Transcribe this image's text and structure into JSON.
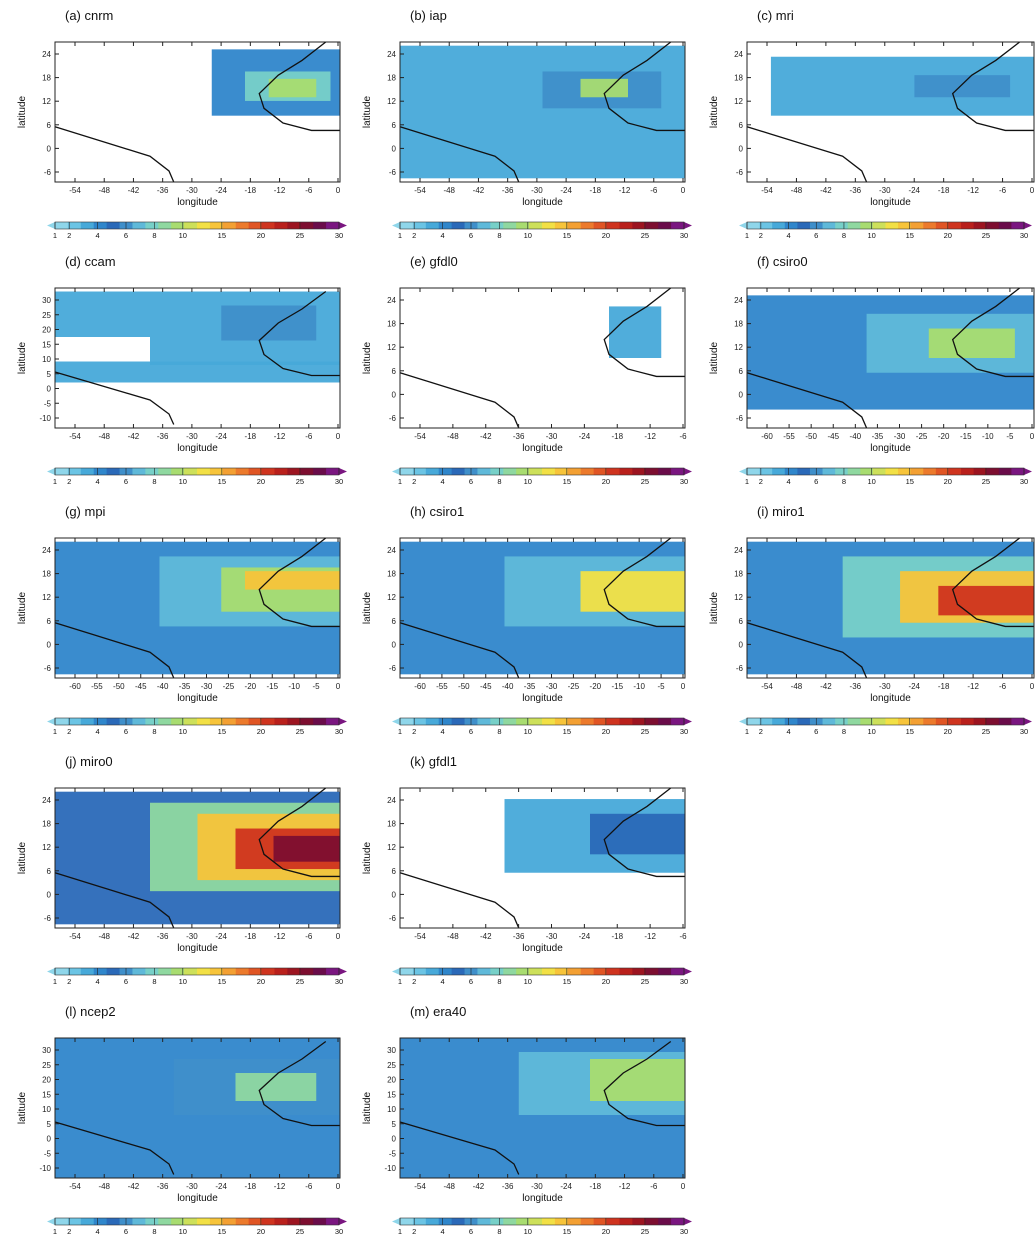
{
  "figure": {
    "colorbar": {
      "ticks": [
        "1",
        "2",
        "4",
        "6",
        "8",
        "10",
        "15",
        "20",
        "25",
        "30"
      ],
      "colors": [
        "#8fd6ea",
        "#6bc4e4",
        "#47a9d9",
        "#2f86cb",
        "#2a69b8",
        "#3f8fca",
        "#5fb9d9",
        "#77d0c8",
        "#8fd8a0",
        "#a8dc70",
        "#cde05a",
        "#f2e045",
        "#f7c43a",
        "#f3a033",
        "#ec7a2c",
        "#e05524",
        "#cf341f",
        "#b9201c",
        "#9c1420",
        "#7d0e30",
        "#6a0c4a",
        "#7a1680"
      ]
    },
    "panels": [
      {
        "id": "a",
        "title": "(a) cnrm",
        "xticks": [
          "-54",
          "-48",
          "-42",
          "-36",
          "-30",
          "-24",
          "-18",
          "-12",
          "-6",
          "0"
        ],
        "yticks": [
          "24",
          "18",
          "12",
          "6",
          "0",
          "-6"
        ],
        "xlabel": "longitude",
        "ylabel": "latitude",
        "lon_range": [
          -60,
          0
        ],
        "lat_range": [
          -9,
          29
        ],
        "chart_data": {
          "type": "heatmap",
          "variable": "gridded field",
          "units": "same scale as colorbar 1–30",
          "cells": [
            {
              "lon": [
                -27,
                0
              ],
              "lat": [
                9,
                27
              ],
              "value": 4
            },
            {
              "lon": [
                -20,
                -2
              ],
              "lat": [
                13,
                21
              ],
              "value": 8
            },
            {
              "lon": [
                -15,
                -5
              ],
              "lat": [
                14,
                19
              ],
              "value": 10
            }
          ]
        }
      },
      {
        "id": "b",
        "title": "(b) iap",
        "xticks": [
          "-54",
          "-48",
          "-42",
          "-36",
          "-30",
          "-24",
          "-18",
          "-12",
          "-6",
          "0"
        ],
        "yticks": [
          "24",
          "18",
          "12",
          "6",
          "0",
          "-6"
        ],
        "xlabel": "longitude",
        "ylabel": "latitude",
        "lon_range": [
          -60,
          0
        ],
        "lat_range": [
          -9,
          29
        ],
        "chart_data": {
          "type": "heatmap",
          "variable": "gridded field",
          "units": "same scale as colorbar 1–30",
          "cells": [
            {
              "lon": [
                -60,
                0
              ],
              "lat": [
                -8,
                28
              ],
              "value": 3
            },
            {
              "lon": [
                -30,
                -5
              ],
              "lat": [
                11,
                21
              ],
              "value": 6
            },
            {
              "lon": [
                -22,
                -12
              ],
              "lat": [
                14,
                19
              ],
              "value": 10
            }
          ]
        }
      },
      {
        "id": "c",
        "title": "(c) mri",
        "xticks": [
          "-54",
          "-48",
          "-42",
          "-36",
          "-30",
          "-24",
          "-18",
          "-12",
          "-6",
          "0"
        ],
        "yticks": [
          "24",
          "18",
          "12",
          "6",
          "0",
          "-6"
        ],
        "xlabel": "longitude",
        "ylabel": "latitude",
        "lon_range": [
          -60,
          0
        ],
        "lat_range": [
          -9,
          29
        ],
        "chart_data": {
          "type": "heatmap",
          "variable": "gridded field",
          "units": "same scale as colorbar 1–30",
          "cells": [
            {
              "lon": [
                -55,
                0
              ],
              "lat": [
                9,
                25
              ],
              "value": 3
            },
            {
              "lon": [
                -25,
                -5
              ],
              "lat": [
                14,
                20
              ],
              "value": 6
            }
          ]
        }
      },
      {
        "id": "d",
        "title": "(d) ccam",
        "xticks": [
          "-54",
          "-48",
          "-42",
          "-36",
          "-30",
          "-24",
          "-18",
          "-12",
          "-6",
          "0"
        ],
        "yticks": [
          "30",
          "25",
          "20",
          "15",
          "10",
          "5",
          "0",
          "-5",
          "-10"
        ],
        "xlabel": "longitude",
        "ylabel": "latitude",
        "lon_range": [
          -60,
          0
        ],
        "lat_range": [
          -10,
          30
        ],
        "chart_data": {
          "type": "heatmap",
          "variable": "gridded field",
          "units": "same scale as colorbar 1–30",
          "cells": [
            {
              "lon": [
                -60,
                0
              ],
              "lat": [
                16,
                29
              ],
              "value": 3
            },
            {
              "lon": [
                -60,
                0
              ],
              "lat": [
                3,
                9
              ],
              "value": 3
            },
            {
              "lon": [
                -40,
                0
              ],
              "lat": [
                8,
                16
              ],
              "value": 3
            },
            {
              "lon": [
                -25,
                -5
              ],
              "lat": [
                15,
                25
              ],
              "value": 6
            }
          ]
        }
      },
      {
        "id": "e",
        "title": "(e) gfdl0",
        "xticks": [
          "-54",
          "-48",
          "-42",
          "-36",
          "-30",
          "-24",
          "-18",
          "-12",
          "-6"
        ],
        "yticks": [
          "24",
          "18",
          "12",
          "6",
          "0",
          "-6"
        ],
        "xlabel": "longitude",
        "ylabel": "latitude",
        "lon_range": [
          -60,
          0
        ],
        "lat_range": [
          -9,
          29
        ],
        "chart_data": {
          "type": "heatmap",
          "variable": "gridded field",
          "units": "same scale as colorbar 1–30",
          "cells": [
            {
              "lon": [
                -16,
                -5
              ],
              "lat": [
                10,
                24
              ],
              "value": 3
            }
          ]
        }
      },
      {
        "id": "f",
        "title": "(f) csiro0",
        "xticks": [
          "-60",
          "-55",
          "-50",
          "-45",
          "-40",
          "-35",
          "-30",
          "-25",
          "-20",
          "-15",
          "-10",
          "-5",
          "0"
        ],
        "yticks": [
          "24",
          "18",
          "12",
          "6",
          "0",
          "-6"
        ],
        "xlabel": "longitude",
        "ylabel": "latitude",
        "lon_range": [
          -60,
          0
        ],
        "lat_range": [
          -9,
          29
        ],
        "chart_data": {
          "type": "heatmap",
          "variable": "gridded field",
          "units": "same scale as colorbar 1–30",
          "cells": [
            {
              "lon": [
                -60,
                0
              ],
              "lat": [
                -4,
                27
              ],
              "value": 4
            },
            {
              "lon": [
                -35,
                0
              ],
              "lat": [
                6,
                22
              ],
              "value": 7
            },
            {
              "lon": [
                -22,
                -4
              ],
              "lat": [
                10,
                18
              ],
              "value": 10
            }
          ]
        }
      },
      {
        "id": "g",
        "title": "(g) mpi",
        "xticks": [
          "-60",
          "-55",
          "-50",
          "-45",
          "-40",
          "-35",
          "-30",
          "-25",
          "-20",
          "-15",
          "-10",
          "-5",
          "0"
        ],
        "yticks": [
          "24",
          "18",
          "12",
          "6",
          "0",
          "-6"
        ],
        "xlabel": "longitude",
        "ylabel": "latitude",
        "lon_range": [
          -60,
          0
        ],
        "lat_range": [
          -9,
          29
        ],
        "chart_data": {
          "type": "heatmap",
          "variable": "gridded field",
          "units": "same scale as colorbar 1–30",
          "cells": [
            {
              "lon": [
                -60,
                0
              ],
              "lat": [
                -8,
                28
              ],
              "value": 4
            },
            {
              "lon": [
                -38,
                0
              ],
              "lat": [
                5,
                24
              ],
              "value": 7
            },
            {
              "lon": [
                -25,
                0
              ],
              "lat": [
                9,
                21
              ],
              "value": 10
            },
            {
              "lon": [
                -20,
                0
              ],
              "lat": [
                15,
                20
              ],
              "value": 15
            }
          ]
        }
      },
      {
        "id": "h",
        "title": "(h) csiro1",
        "xticks": [
          "-60",
          "-55",
          "-50",
          "-45",
          "-40",
          "-35",
          "-30",
          "-25",
          "-20",
          "-15",
          "-10",
          "-5",
          "0"
        ],
        "yticks": [
          "24",
          "18",
          "12",
          "6",
          "0",
          "-6"
        ],
        "xlabel": "longitude",
        "ylabel": "latitude",
        "lon_range": [
          -60,
          0
        ],
        "lat_range": [
          -9,
          29
        ],
        "chart_data": {
          "type": "heatmap",
          "variable": "gridded field",
          "units": "same scale as colorbar 1–30",
          "cells": [
            {
              "lon": [
                -60,
                0
              ],
              "lat": [
                -8,
                28
              ],
              "value": 4
            },
            {
              "lon": [
                -38,
                0
              ],
              "lat": [
                5,
                24
              ],
              "value": 7
            },
            {
              "lon": [
                -22,
                0
              ],
              "lat": [
                9,
                20
              ],
              "value": 12
            }
          ]
        }
      },
      {
        "id": "i",
        "title": "(i) miro1",
        "xticks": [
          "-54",
          "-48",
          "-42",
          "-36",
          "-30",
          "-24",
          "-18",
          "-12",
          "-6",
          "0"
        ],
        "yticks": [
          "24",
          "18",
          "12",
          "6",
          "0",
          "-6"
        ],
        "xlabel": "longitude",
        "ylabel": "latitude",
        "lon_range": [
          -60,
          0
        ],
        "lat_range": [
          -9,
          29
        ],
        "chart_data": {
          "type": "heatmap",
          "variable": "gridded field",
          "units": "same scale as colorbar 1–30",
          "cells": [
            {
              "lon": [
                -60,
                0
              ],
              "lat": [
                -8,
                28
              ],
              "value": 4
            },
            {
              "lon": [
                -40,
                0
              ],
              "lat": [
                2,
                24
              ],
              "value": 8
            },
            {
              "lon": [
                -28,
                0
              ],
              "lat": [
                6,
                20
              ],
              "value": 15
            },
            {
              "lon": [
                -20,
                0
              ],
              "lat": [
                8,
                16
              ],
              "value": 22
            }
          ]
        }
      },
      {
        "id": "j",
        "title": "(j) miro0",
        "xticks": [
          "-54",
          "-48",
          "-42",
          "-36",
          "-30",
          "-24",
          "-18",
          "-12",
          "-6",
          "0"
        ],
        "yticks": [
          "24",
          "18",
          "12",
          "6",
          "0",
          "-6"
        ],
        "xlabel": "longitude",
        "ylabel": "latitude",
        "lon_range": [
          -60,
          0
        ],
        "lat_range": [
          -9,
          29
        ],
        "chart_data": {
          "type": "heatmap",
          "variable": "gridded field",
          "units": "same scale as colorbar 1–30",
          "cells": [
            {
              "lon": [
                -60,
                0
              ],
              "lat": [
                -8,
                28
              ],
              "value": 5
            },
            {
              "lon": [
                -40,
                0
              ],
              "lat": [
                1,
                25
              ],
              "value": 9
            },
            {
              "lon": [
                -30,
                0
              ],
              "lat": [
                4,
                22
              ],
              "value": 15
            },
            {
              "lon": [
                -22,
                0
              ],
              "lat": [
                7,
                18
              ],
              "value": 22
            },
            {
              "lon": [
                -14,
                0
              ],
              "lat": [
                9,
                16
              ],
              "value": 27
            }
          ]
        }
      },
      {
        "id": "k",
        "title": "(k) gfdl1",
        "xticks": [
          "-54",
          "-48",
          "-42",
          "-36",
          "-30",
          "-24",
          "-18",
          "-12",
          "-6"
        ],
        "yticks": [
          "24",
          "18",
          "12",
          "6",
          "0",
          "-6"
        ],
        "xlabel": "longitude",
        "ylabel": "latitude",
        "lon_range": [
          -60,
          0
        ],
        "lat_range": [
          -9,
          29
        ],
        "chart_data": {
          "type": "heatmap",
          "variable": "gridded field",
          "units": "same scale as colorbar 1–30",
          "cells": [
            {
              "lon": [
                -38,
                0
              ],
              "lat": [
                6,
                26
              ],
              "value": 3
            },
            {
              "lon": [
                -20,
                0
              ],
              "lat": [
                11,
                22
              ],
              "value": 5
            }
          ]
        }
      },
      {
        "id": "l",
        "title": "(l) ncep2",
        "xticks": [
          "-54",
          "-48",
          "-42",
          "-36",
          "-30",
          "-24",
          "-18",
          "-12",
          "-6",
          "0"
        ],
        "yticks": [
          "30",
          "25",
          "20",
          "15",
          "10",
          "5",
          "0",
          "-5",
          "-10"
        ],
        "xlabel": "longitude",
        "ylabel": "latitude",
        "lon_range": [
          -60,
          0
        ],
        "lat_range": [
          -10,
          30
        ],
        "chart_data": {
          "type": "heatmap",
          "variable": "gridded field",
          "units": "same scale as colorbar 1–30",
          "cells": [
            {
              "lon": [
                -60,
                0
              ],
              "lat": [
                -10,
                30
              ],
              "value": 4
            },
            {
              "lon": [
                -35,
                0
              ],
              "lat": [
                8,
                24
              ],
              "value": 6
            },
            {
              "lon": [
                -22,
                -5
              ],
              "lat": [
                12,
                20
              ],
              "value": 9
            }
          ]
        }
      },
      {
        "id": "m",
        "title": "(m) era40",
        "xticks": [
          "-54",
          "-48",
          "-42",
          "-36",
          "-30",
          "-24",
          "-18",
          "-12",
          "-6",
          "0"
        ],
        "yticks": [
          "30",
          "25",
          "20",
          "15",
          "10",
          "5",
          "0",
          "-5",
          "-10"
        ],
        "xlabel": "longitude",
        "ylabel": "latitude",
        "lon_range": [
          -60,
          0
        ],
        "lat_range": [
          -10,
          30
        ],
        "chart_data": {
          "type": "heatmap",
          "variable": "gridded field",
          "units": "same scale as colorbar 1–30",
          "cells": [
            {
              "lon": [
                -60,
                0
              ],
              "lat": [
                -10,
                30
              ],
              "value": 4
            },
            {
              "lon": [
                -35,
                0
              ],
              "lat": [
                8,
                26
              ],
              "value": 7
            },
            {
              "lon": [
                -20,
                0
              ],
              "lat": [
                12,
                24
              ],
              "value": 10
            }
          ]
        }
      }
    ]
  }
}
